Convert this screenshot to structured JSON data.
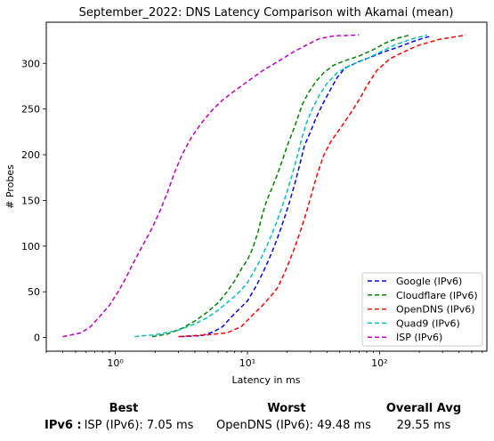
{
  "chart_data": {
    "type": "line",
    "title": "September_2022: DNS Latency Comparison with Akamai (mean)",
    "xlabel": "Latency in ms",
    "ylabel": "# Probes",
    "xscale": "log",
    "xlim": [
      0.3,
      650
    ],
    "ylim": [
      -15,
      345
    ],
    "xticks": [
      1,
      10,
      100
    ],
    "xtick_labels": [
      "10⁰",
      "10¹",
      "10²"
    ],
    "yticks": [
      0,
      50,
      100,
      150,
      200,
      250,
      300
    ],
    "legend_position": "lower-right",
    "grid": false,
    "line_style": "dashed",
    "series": [
      {
        "name": "Google (IPv6)",
        "color": "#0000ff",
        "points": [
          [
            3.1,
            1
          ],
          [
            4.5,
            2
          ],
          [
            5.5,
            6
          ],
          [
            6.5,
            12
          ],
          [
            7.5,
            22
          ],
          [
            8.5,
            30
          ],
          [
            10,
            40
          ],
          [
            11.5,
            55
          ],
          [
            13,
            70
          ],
          [
            14.5,
            85
          ],
          [
            16,
            100
          ],
          [
            17.5,
            115
          ],
          [
            19,
            130
          ],
          [
            21,
            150
          ],
          [
            23,
            170
          ],
          [
            25,
            190
          ],
          [
            27,
            210
          ],
          [
            30,
            225
          ],
          [
            33,
            240
          ],
          [
            37,
            255
          ],
          [
            42,
            270
          ],
          [
            48,
            285
          ],
          [
            55,
            295
          ],
          [
            70,
            302
          ],
          [
            90,
            308
          ],
          [
            110,
            313
          ],
          [
            140,
            318
          ],
          [
            180,
            324
          ],
          [
            220,
            328
          ],
          [
            250,
            330
          ]
        ]
      },
      {
        "name": "Cloudflare (IPv6)",
        "color": "#008000",
        "points": [
          [
            1.9,
            1
          ],
          [
            2.5,
            4
          ],
          [
            3.2,
            10
          ],
          [
            4,
            18
          ],
          [
            5,
            28
          ],
          [
            6,
            38
          ],
          [
            7,
            50
          ],
          [
            8,
            62
          ],
          [
            9,
            75
          ],
          [
            10,
            85
          ],
          [
            11,
            98
          ],
          [
            12,
            115
          ],
          [
            13,
            135
          ],
          [
            14,
            150
          ],
          [
            15.5,
            165
          ],
          [
            17,
            180
          ],
          [
            18.5,
            195
          ],
          [
            20,
            210
          ],
          [
            22,
            225
          ],
          [
            24,
            240
          ],
          [
            26,
            255
          ],
          [
            29,
            268
          ],
          [
            33,
            280
          ],
          [
            38,
            290
          ],
          [
            45,
            298
          ],
          [
            55,
            303
          ],
          [
            70,
            308
          ],
          [
            90,
            315
          ],
          [
            110,
            322
          ],
          [
            140,
            328
          ],
          [
            170,
            331
          ]
        ]
      },
      {
        "name": "OpenDNS (IPv6)",
        "color": "#ff0000",
        "points": [
          [
            3.0,
            1
          ],
          [
            5,
            3
          ],
          [
            7,
            5
          ],
          [
            9,
            12
          ],
          [
            11,
            25
          ],
          [
            13,
            35
          ],
          [
            15,
            45
          ],
          [
            17,
            55
          ],
          [
            19,
            70
          ],
          [
            21,
            85
          ],
          [
            23,
            100
          ],
          [
            25,
            115
          ],
          [
            27,
            130
          ],
          [
            29,
            145
          ],
          [
            31,
            160
          ],
          [
            34,
            180
          ],
          [
            38,
            200
          ],
          [
            43,
            215
          ],
          [
            50,
            228
          ],
          [
            60,
            245
          ],
          [
            70,
            260
          ],
          [
            80,
            275
          ],
          [
            95,
            292
          ],
          [
            120,
            305
          ],
          [
            150,
            312
          ],
          [
            200,
            320
          ],
          [
            280,
            326
          ],
          [
            450,
            331
          ]
        ]
      },
      {
        "name": "Quad9 (IPv6)",
        "color": "#00bfbf",
        "points": [
          [
            1.4,
            1
          ],
          [
            2,
            3
          ],
          [
            3,
            8
          ],
          [
            4,
            15
          ],
          [
            5,
            22
          ],
          [
            6,
            30
          ],
          [
            7,
            38
          ],
          [
            8,
            45
          ],
          [
            9,
            52
          ],
          [
            10,
            60
          ],
          [
            11,
            70
          ],
          [
            12,
            80
          ],
          [
            13,
            90
          ],
          [
            14,
            100
          ],
          [
            15,
            110
          ],
          [
            16.5,
            125
          ],
          [
            18,
            140
          ],
          [
            20,
            160
          ],
          [
            22,
            180
          ],
          [
            24,
            200
          ],
          [
            26,
            220
          ],
          [
            28,
            235
          ],
          [
            31,
            250
          ],
          [
            35,
            265
          ],
          [
            40,
            278
          ],
          [
            48,
            290
          ],
          [
            60,
            298
          ],
          [
            80,
            305
          ],
          [
            100,
            312
          ],
          [
            130,
            320
          ],
          [
            170,
            326
          ],
          [
            230,
            331
          ]
        ]
      },
      {
        "name": "ISP (IPv6)",
        "color": "#bf00bf",
        "points": [
          [
            0.4,
            1
          ],
          [
            0.55,
            5
          ],
          [
            0.65,
            12
          ],
          [
            0.75,
            22
          ],
          [
            0.9,
            35
          ],
          [
            1.05,
            50
          ],
          [
            1.2,
            65
          ],
          [
            1.35,
            80
          ],
          [
            1.6,
            100
          ],
          [
            1.9,
            120
          ],
          [
            2.2,
            140
          ],
          [
            2.5,
            160
          ],
          [
            2.8,
            180
          ],
          [
            3.2,
            200
          ],
          [
            3.8,
            220
          ],
          [
            4.5,
            235
          ],
          [
            5.5,
            250
          ],
          [
            6.5,
            260
          ],
          [
            8,
            270
          ],
          [
            10,
            280
          ],
          [
            13,
            292
          ],
          [
            17,
            302
          ],
          [
            22,
            312
          ],
          [
            28,
            320
          ],
          [
            35,
            327
          ],
          [
            45,
            330
          ],
          [
            70,
            331
          ]
        ]
      }
    ]
  },
  "summary": {
    "best_header": "Best",
    "worst_header": "Worst",
    "avg_header": "Overall Avg",
    "row_label": "IPv6 :",
    "best_value": "ISP (IPv6): 7.05 ms",
    "worst_value": "OpenDNS (IPv6): 49.48 ms",
    "avg_value": "29.55 ms"
  }
}
